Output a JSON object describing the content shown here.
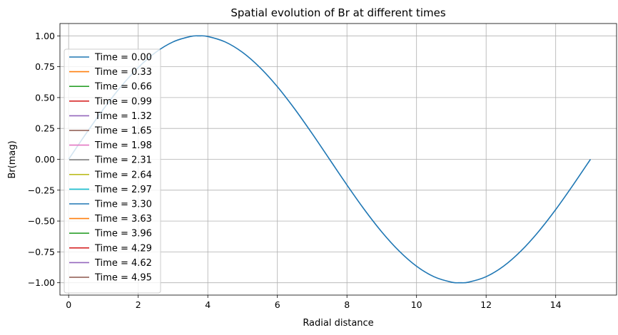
{
  "chart_data": {
    "type": "line",
    "title": "Spatial evolution of Br at different times",
    "xlabel": "Radial distance",
    "ylabel": "Br(mag)",
    "xlim": [
      -0.25,
      15.75
    ],
    "ylim": [
      -1.1,
      1.1
    ],
    "x_ticks": [
      0,
      2,
      4,
      6,
      8,
      10,
      12,
      14
    ],
    "y_ticks": [
      1.0,
      0.75,
      0.5,
      0.25,
      0.0,
      -0.25,
      -0.5,
      -0.75,
      -1.0
    ],
    "x_tick_labels": [
      "0",
      "2",
      "4",
      "6",
      "8",
      "10",
      "12",
      "14"
    ],
    "y_tick_labels": [
      "1.00",
      "0.75",
      "0.50",
      "0.25",
      "0.00",
      "−0.25",
      "−0.50",
      "−0.75",
      "−1.00"
    ],
    "grid": true,
    "legend_position": "left",
    "x": [
      0,
      0.5,
      1,
      1.5,
      2,
      2.5,
      3,
      3.5,
      3.75,
      4,
      4.5,
      5,
      5.5,
      6,
      6.5,
      7,
      7.5,
      8,
      8.5,
      9,
      9.5,
      10,
      10.5,
      11,
      11.25,
      11.5,
      12,
      12.5,
      13,
      13.5,
      14,
      14.5,
      15
    ],
    "series": [
      {
        "name": "Time = 0.00",
        "color": "#1f77b4",
        "values": [
          0.0,
          0.208,
          0.407,
          0.588,
          0.743,
          0.866,
          0.951,
          0.995,
          1.0,
          0.995,
          0.951,
          0.866,
          0.743,
          0.588,
          0.407,
          0.208,
          0.0,
          -0.208,
          -0.407,
          -0.588,
          -0.743,
          -0.866,
          -0.951,
          -0.995,
          -1.0,
          -0.995,
          -0.951,
          -0.866,
          -0.743,
          -0.588,
          -0.407,
          -0.208,
          0.0
        ]
      },
      {
        "name": "Time = 0.33",
        "color": "#ff7f0e"
      },
      {
        "name": "Time = 0.66",
        "color": "#2ca02c"
      },
      {
        "name": "Time = 0.99",
        "color": "#d62728"
      },
      {
        "name": "Time = 1.32",
        "color": "#9467bd"
      },
      {
        "name": "Time = 1.65",
        "color": "#8c564b"
      },
      {
        "name": "Time = 1.98",
        "color": "#e377c2"
      },
      {
        "name": "Time = 2.31",
        "color": "#7f7f7f"
      },
      {
        "name": "Time = 2.64",
        "color": "#bcbd22"
      },
      {
        "name": "Time = 2.97",
        "color": "#17becf"
      },
      {
        "name": "Time = 3.30",
        "color": "#1f77b4"
      },
      {
        "name": "Time = 3.63",
        "color": "#ff7f0e"
      },
      {
        "name": "Time = 3.96",
        "color": "#2ca02c"
      },
      {
        "name": "Time = 4.29",
        "color": "#d62728"
      },
      {
        "name": "Time = 4.62",
        "color": "#9467bd"
      },
      {
        "name": "Time = 4.95",
        "color": "#8c564b"
      }
    ]
  }
}
